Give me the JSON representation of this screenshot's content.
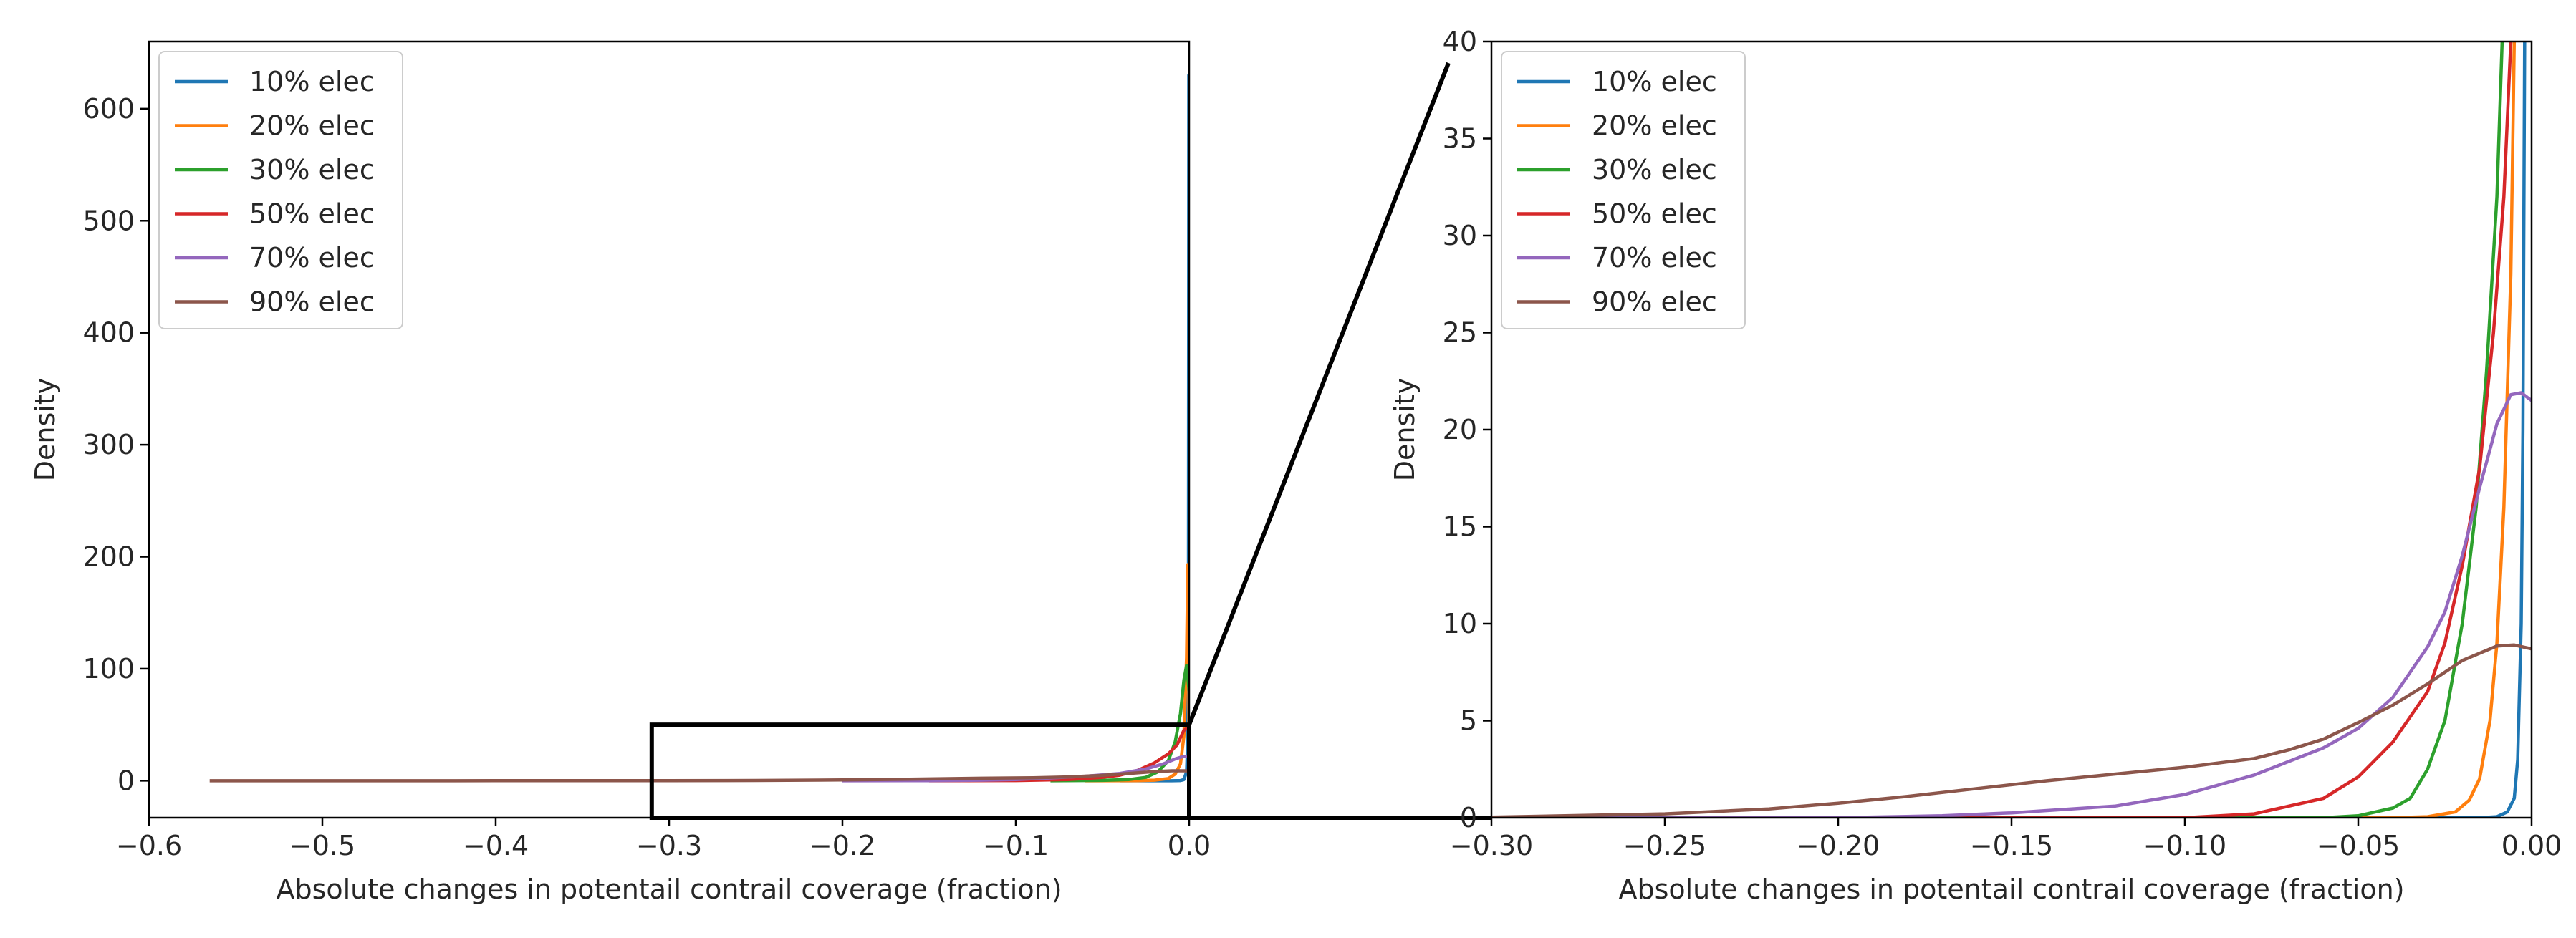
{
  "chart_data": [
    {
      "type": "line",
      "panel": "full view",
      "xlabel": "Absolute changes in potentail contrail coverage (fraction)",
      "ylabel": "Density",
      "xlim": [
        -0.6,
        0.0
      ],
      "ylim": [
        -33,
        660
      ],
      "xticks": [
        "−0.6",
        "−0.5",
        "−0.4",
        "−0.3",
        "−0.2",
        "−0.1",
        "0.0"
      ],
      "yticks": [
        "0",
        "100",
        "200",
        "300",
        "400",
        "500",
        "600"
      ],
      "legend_position": "upper-left",
      "zoom_box": {
        "x": [
          -0.31,
          0.0
        ],
        "y": [
          -33,
          50
        ]
      },
      "series": [
        {
          "name": "10% elec",
          "color": "#1f77b4",
          "points": [
            [
              -0.04,
              0
            ],
            [
              -0.01,
              0
            ],
            [
              -0.005,
              0.2
            ],
            [
              -0.003,
              1
            ],
            [
              -0.0015,
              8
            ],
            [
              -0.0008,
              40
            ],
            [
              -0.0004,
              150
            ],
            [
              -0.0002,
              630
            ],
            [
              -0.0001,
              60
            ],
            [
              0.0,
              3
            ]
          ]
        },
        {
          "name": "20% elec",
          "color": "#ff7f0e",
          "points": [
            [
              -0.06,
              0
            ],
            [
              -0.03,
              0.1
            ],
            [
              -0.02,
              0.5
            ],
            [
              -0.012,
              2
            ],
            [
              -0.008,
              6
            ],
            [
              -0.005,
              15
            ],
            [
              -0.003,
              40
            ],
            [
              -0.0015,
              110
            ],
            [
              -0.0008,
              193
            ],
            [
              -0.0003,
              120
            ],
            [
              0.0,
              20
            ]
          ]
        },
        {
          "name": "30% elec",
          "color": "#2ca02c",
          "points": [
            [
              -0.08,
              0
            ],
            [
              -0.05,
              0.3
            ],
            [
              -0.035,
              1
            ],
            [
              -0.025,
              3
            ],
            [
              -0.018,
              8
            ],
            [
              -0.012,
              18
            ],
            [
              -0.008,
              35
            ],
            [
              -0.005,
              60
            ],
            [
              -0.003,
              90
            ],
            [
              -0.0015,
              103
            ],
            [
              0.0,
              80
            ]
          ]
        },
        {
          "name": "50% elec",
          "color": "#d62728",
          "points": [
            [
              -0.15,
              0
            ],
            [
              -0.1,
              0.2
            ],
            [
              -0.07,
              1
            ],
            [
              -0.05,
              3
            ],
            [
              -0.04,
              5
            ],
            [
              -0.03,
              9
            ],
            [
              -0.02,
              16
            ],
            [
              -0.012,
              24
            ],
            [
              -0.007,
              32
            ],
            [
              -0.003,
              45
            ],
            [
              0.0,
              48
            ]
          ]
        },
        {
          "name": "70% elec",
          "color": "#9467bd",
          "points": [
            [
              -0.2,
              0
            ],
            [
              -0.15,
              0.1
            ],
            [
              -0.12,
              0.5
            ],
            [
              -0.1,
              1
            ],
            [
              -0.08,
              2.5
            ],
            [
              -0.06,
              4
            ],
            [
              -0.04,
              6.5
            ],
            [
              -0.025,
              10.5
            ],
            [
              -0.015,
              15
            ],
            [
              -0.008,
              19.5
            ],
            [
              -0.003,
              21.8
            ],
            [
              0.0,
              21.5
            ]
          ]
        },
        {
          "name": "90% elec",
          "color": "#8c564b",
          "points": [
            [
              -0.565,
              0
            ],
            [
              -0.4,
              0.02
            ],
            [
              -0.3,
              0.1
            ],
            [
              -0.25,
              0.25
            ],
            [
              -0.2,
              0.7
            ],
            [
              -0.15,
              1.6
            ],
            [
              -0.12,
              2.2
            ],
            [
              -0.09,
              2.7
            ],
            [
              -0.07,
              3.4
            ],
            [
              -0.05,
              4.8
            ],
            [
              -0.035,
              6.5
            ],
            [
              -0.02,
              8.2
            ],
            [
              -0.01,
              8.9
            ],
            [
              -0.003,
              8.85
            ],
            [
              0.0,
              8.7
            ]
          ]
        }
      ]
    },
    {
      "type": "line",
      "panel": "zoomed view",
      "xlabel": "Absolute changes in potentail contrail coverage (fraction)",
      "ylabel": "Density",
      "xlim": [
        -0.3,
        0.0
      ],
      "ylim": [
        0,
        40
      ],
      "xticks": [
        "−0.30",
        "−0.25",
        "−0.20",
        "−0.15",
        "−0.10",
        "−0.05",
        "0.00"
      ],
      "yticks": [
        "0",
        "5",
        "10",
        "15",
        "20",
        "25",
        "30",
        "35",
        "40"
      ],
      "legend_position": "upper-left",
      "series": [
        {
          "name": "10% elec",
          "color": "#1f77b4",
          "points": [
            [
              -0.3,
              0
            ],
            [
              -0.015,
              0
            ],
            [
              -0.01,
              0.05
            ],
            [
              -0.007,
              0.3
            ],
            [
              -0.005,
              1
            ],
            [
              -0.004,
              3
            ],
            [
              -0.003,
              10
            ],
            [
              -0.0025,
              20
            ],
            [
              -0.002,
              40
            ]
          ]
        },
        {
          "name": "20% elec",
          "color": "#ff7f0e",
          "points": [
            [
              -0.3,
              0
            ],
            [
              -0.04,
              0
            ],
            [
              -0.03,
              0.05
            ],
            [
              -0.022,
              0.3
            ],
            [
              -0.018,
              0.9
            ],
            [
              -0.015,
              2
            ],
            [
              -0.012,
              5
            ],
            [
              -0.01,
              9
            ],
            [
              -0.008,
              16
            ],
            [
              -0.006,
              28
            ],
            [
              -0.005,
              40
            ]
          ]
        },
        {
          "name": "30% elec",
          "color": "#2ca02c",
          "points": [
            [
              -0.3,
              0
            ],
            [
              -0.06,
              0
            ],
            [
              -0.05,
              0.1
            ],
            [
              -0.04,
              0.5
            ],
            [
              -0.035,
              1
            ],
            [
              -0.03,
              2.5
            ],
            [
              -0.025,
              5
            ],
            [
              -0.02,
              10
            ],
            [
              -0.016,
              16
            ],
            [
              -0.013,
              23
            ],
            [
              -0.01,
              32
            ],
            [
              -0.0085,
              40
            ]
          ]
        },
        {
          "name": "50% elec",
          "color": "#d62728",
          "points": [
            [
              -0.3,
              0
            ],
            [
              -0.1,
              0
            ],
            [
              -0.08,
              0.2
            ],
            [
              -0.06,
              1
            ],
            [
              -0.05,
              2.1
            ],
            [
              -0.04,
              3.9
            ],
            [
              -0.03,
              6.5
            ],
            [
              -0.025,
              9
            ],
            [
              -0.02,
              13
            ],
            [
              -0.015,
              18
            ],
            [
              -0.011,
              25
            ],
            [
              -0.008,
              32
            ],
            [
              -0.006,
              40
            ]
          ]
        },
        {
          "name": "70% elec",
          "color": "#9467bd",
          "points": [
            [
              -0.3,
              0
            ],
            [
              -0.2,
              0
            ],
            [
              -0.17,
              0.1
            ],
            [
              -0.15,
              0.25
            ],
            [
              -0.12,
              0.6
            ],
            [
              -0.1,
              1.2
            ],
            [
              -0.08,
              2.2
            ],
            [
              -0.06,
              3.6
            ],
            [
              -0.05,
              4.6
            ],
            [
              -0.04,
              6.2
            ],
            [
              -0.03,
              8.8
            ],
            [
              -0.025,
              10.6
            ],
            [
              -0.02,
              13.5
            ],
            [
              -0.015,
              17
            ],
            [
              -0.01,
              20.3
            ],
            [
              -0.006,
              21.8
            ],
            [
              -0.003,
              21.9
            ],
            [
              0.0,
              21.5
            ]
          ]
        },
        {
          "name": "90% elec",
          "color": "#8c564b",
          "points": [
            [
              -0.3,
              0.03
            ],
            [
              -0.25,
              0.2
            ],
            [
              -0.22,
              0.45
            ],
            [
              -0.2,
              0.75
            ],
            [
              -0.18,
              1.1
            ],
            [
              -0.16,
              1.5
            ],
            [
              -0.14,
              1.9
            ],
            [
              -0.12,
              2.25
            ],
            [
              -0.1,
              2.6
            ],
            [
              -0.08,
              3.05
            ],
            [
              -0.07,
              3.5
            ],
            [
              -0.06,
              4.05
            ],
            [
              -0.05,
              4.9
            ],
            [
              -0.04,
              5.8
            ],
            [
              -0.03,
              6.9
            ],
            [
              -0.02,
              8.1
            ],
            [
              -0.01,
              8.85
            ],
            [
              -0.005,
              8.9
            ],
            [
              0.0,
              8.7
            ]
          ]
        }
      ]
    }
  ]
}
